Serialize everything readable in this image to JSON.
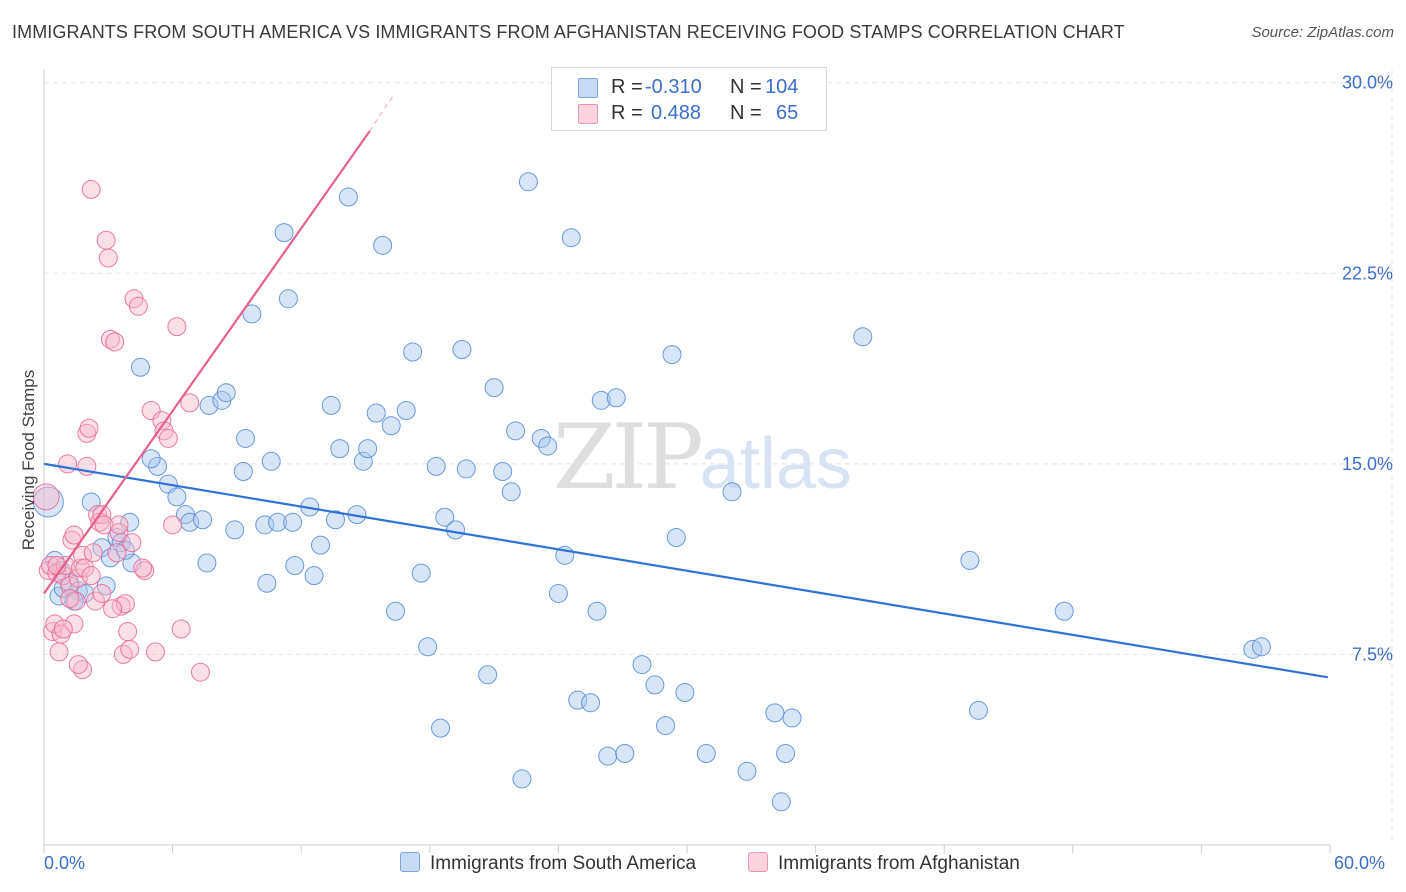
{
  "title": "IMMIGRANTS FROM SOUTH AMERICA VS IMMIGRANTS FROM AFGHANISTAN RECEIVING FOOD STAMPS CORRELATION CHART",
  "source": "Source: ZipAtlas.com",
  "watermark": {
    "zip": "ZIP",
    "atlas": "atlas"
  },
  "legend_top": {
    "r_label": "R =",
    "n_label": "N =",
    "rows": [
      {
        "r": "-0.310",
        "n": "104",
        "color": "#a9c6ec"
      },
      {
        "r": "0.488",
        "n": "65",
        "color": "#f7b8c9"
      }
    ]
  },
  "x_axis": {
    "min_label": "0.0%",
    "max_label": "60.0%"
  },
  "colors": {
    "blue": "#5b8fd9",
    "blue_fill": "#a9c6ec",
    "pink": "#e86e9a",
    "pink_fill": "#f7b8c9",
    "blue_line": "#2f72d4",
    "pink_line": "#e4608f"
  },
  "chart_data": {
    "type": "scatter",
    "title": "IMMIGRANTS FROM SOUTH AMERICA VS IMMIGRANTS FROM AFGHANISTAN RECEIVING FOOD STAMPS CORRELATION CHART",
    "xlabel": "",
    "ylabel": "Receiving Food Stamps",
    "xlim": [
      0,
      60
    ],
    "ylim": [
      0,
      30.5
    ],
    "x_unit": "%",
    "y_unit": "%",
    "yticks": [
      7.5,
      15.0,
      22.5,
      30.0
    ],
    "ytick_labels": [
      "7.5%",
      "15.0%",
      "22.5%",
      "30.0%"
    ],
    "grid": "horizontal dashed",
    "legend_position": "bottom",
    "series": [
      {
        "name": "Immigrants from South America",
        "r": -0.31,
        "n": 104,
        "trend": [
          [
            0,
            15.0
          ],
          [
            59.9,
            6.6
          ]
        ],
        "points": [
          [
            0.2,
            13.5
          ],
          [
            0.5,
            11.2
          ],
          [
            0.7,
            9.8
          ],
          [
            0.9,
            10.1
          ],
          [
            1.2,
            10.3
          ],
          [
            1.6,
            10.0
          ],
          [
            1.9,
            9.9
          ],
          [
            2.2,
            13.5
          ],
          [
            2.7,
            11.7
          ],
          [
            3.1,
            11.3
          ],
          [
            3.4,
            12.1
          ],
          [
            4.1,
            11.1
          ],
          [
            3.6,
            11.9
          ],
          [
            4.5,
            18.8
          ],
          [
            4.0,
            12.7
          ],
          [
            5.3,
            14.9
          ],
          [
            5.8,
            14.2
          ],
          [
            6.2,
            13.7
          ],
          [
            5.0,
            15.2
          ],
          [
            6.6,
            13.0
          ],
          [
            6.8,
            12.7
          ],
          [
            7.4,
            12.8
          ],
          [
            7.6,
            11.1
          ],
          [
            7.7,
            17.3
          ],
          [
            8.3,
            17.5
          ],
          [
            8.5,
            17.8
          ],
          [
            8.9,
            12.4
          ],
          [
            9.3,
            14.7
          ],
          [
            9.4,
            16.0
          ],
          [
            9.7,
            20.9
          ],
          [
            10.3,
            12.6
          ],
          [
            10.4,
            10.3
          ],
          [
            10.6,
            15.1
          ],
          [
            10.9,
            12.7
          ],
          [
            11.2,
            24.1
          ],
          [
            11.4,
            21.5
          ],
          [
            11.6,
            12.7
          ],
          [
            11.7,
            11.0
          ],
          [
            12.4,
            13.3
          ],
          [
            12.6,
            10.6
          ],
          [
            12.9,
            11.8
          ],
          [
            13.4,
            17.3
          ],
          [
            13.6,
            12.8
          ],
          [
            13.8,
            15.6
          ],
          [
            14.2,
            25.5
          ],
          [
            14.6,
            13.0
          ],
          [
            14.9,
            15.1
          ],
          [
            15.1,
            15.6
          ],
          [
            15.5,
            17.0
          ],
          [
            15.8,
            23.6
          ],
          [
            16.2,
            16.5
          ],
          [
            16.4,
            9.2
          ],
          [
            16.9,
            17.1
          ],
          [
            17.2,
            19.4
          ],
          [
            17.6,
            10.7
          ],
          [
            17.9,
            7.8
          ],
          [
            18.3,
            14.9
          ],
          [
            18.5,
            4.6
          ],
          [
            18.7,
            12.9
          ],
          [
            19.2,
            12.4
          ],
          [
            19.5,
            19.5
          ],
          [
            19.7,
            14.8
          ],
          [
            20.7,
            6.7
          ],
          [
            21.0,
            18.0
          ],
          [
            21.4,
            14.7
          ],
          [
            21.8,
            13.9
          ],
          [
            22.0,
            16.3
          ],
          [
            22.3,
            2.6
          ],
          [
            22.6,
            26.1
          ],
          [
            23.2,
            16.0
          ],
          [
            23.5,
            15.7
          ],
          [
            24.0,
            9.9
          ],
          [
            24.3,
            11.4
          ],
          [
            24.6,
            23.9
          ],
          [
            24.9,
            5.7
          ],
          [
            25.5,
            5.6
          ],
          [
            25.8,
            9.2
          ],
          [
            26.0,
            17.5
          ],
          [
            26.3,
            3.5
          ],
          [
            26.7,
            17.6
          ],
          [
            27.1,
            3.6
          ],
          [
            27.9,
            7.1
          ],
          [
            28.5,
            6.3
          ],
          [
            29.0,
            4.7
          ],
          [
            29.3,
            19.3
          ],
          [
            29.5,
            12.1
          ],
          [
            29.9,
            6.0
          ],
          [
            30.9,
            3.6
          ],
          [
            32.1,
            13.9
          ],
          [
            32.8,
            2.9
          ],
          [
            34.1,
            5.2
          ],
          [
            34.4,
            1.7
          ],
          [
            34.6,
            3.6
          ],
          [
            34.9,
            5.0
          ],
          [
            38.2,
            20.0
          ],
          [
            43.2,
            11.2
          ],
          [
            43.6,
            5.3
          ],
          [
            47.6,
            9.2
          ],
          [
            56.4,
            7.7
          ],
          [
            56.8,
            7.8
          ],
          [
            3.8,
            11.6
          ],
          [
            2.9,
            10.2
          ],
          [
            1.4,
            9.6
          ],
          [
            0.8,
            10.8
          ]
        ]
      },
      {
        "name": "Immigrants from Afghanistan",
        "r": 0.488,
        "n": 65,
        "trend": [
          [
            0,
            9.9
          ],
          [
            15.2,
            28.1
          ]
        ],
        "trend_dashed_to": [
          16.3,
          29.5
        ],
        "points": [
          [
            0.1,
            13.7
          ],
          [
            0.2,
            10.8
          ],
          [
            0.3,
            11.0
          ],
          [
            0.4,
            8.4
          ],
          [
            0.5,
            8.7
          ],
          [
            0.6,
            10.7
          ],
          [
            0.7,
            7.6
          ],
          [
            0.8,
            8.3
          ],
          [
            0.9,
            10.6
          ],
          [
            1.0,
            11.0
          ],
          [
            1.1,
            15.0
          ],
          [
            1.2,
            10.2
          ],
          [
            1.3,
            12.0
          ],
          [
            1.4,
            8.7
          ],
          [
            1.5,
            9.6
          ],
          [
            1.6,
            10.5
          ],
          [
            1.7,
            10.9
          ],
          [
            1.8,
            11.4
          ],
          [
            1.9,
            10.9
          ],
          [
            2.0,
            16.2
          ],
          [
            2.1,
            16.4
          ],
          [
            2.2,
            25.8
          ],
          [
            2.3,
            11.5
          ],
          [
            2.5,
            13.0
          ],
          [
            2.6,
            12.7
          ],
          [
            2.7,
            13.0
          ],
          [
            2.8,
            12.6
          ],
          [
            2.9,
            23.8
          ],
          [
            3.0,
            23.1
          ],
          [
            3.1,
            19.9
          ],
          [
            3.3,
            19.8
          ],
          [
            3.4,
            11.5
          ],
          [
            3.5,
            12.3
          ],
          [
            3.6,
            9.4
          ],
          [
            3.7,
            7.5
          ],
          [
            3.8,
            9.5
          ],
          [
            4.0,
            7.7
          ],
          [
            4.2,
            21.5
          ],
          [
            4.4,
            21.2
          ],
          [
            4.7,
            10.8
          ],
          [
            5.0,
            17.1
          ],
          [
            5.5,
            16.7
          ],
          [
            5.6,
            16.3
          ],
          [
            5.8,
            16.0
          ],
          [
            6.2,
            20.4
          ],
          [
            6.4,
            8.5
          ],
          [
            6.8,
            17.4
          ],
          [
            7.3,
            6.8
          ],
          [
            1.8,
            6.9
          ],
          [
            2.4,
            9.6
          ],
          [
            3.2,
            9.3
          ],
          [
            1.6,
            7.1
          ],
          [
            0.9,
            8.5
          ],
          [
            4.6,
            10.9
          ],
          [
            5.2,
            7.6
          ],
          [
            2.0,
            14.9
          ],
          [
            3.5,
            12.6
          ],
          [
            1.2,
            9.7
          ],
          [
            2.7,
            9.9
          ],
          [
            0.6,
            11.0
          ],
          [
            1.4,
            12.2
          ],
          [
            4.1,
            11.9
          ],
          [
            6.0,
            12.6
          ],
          [
            3.9,
            8.4
          ],
          [
            2.2,
            10.6
          ]
        ]
      }
    ]
  },
  "bottom_legend": [
    {
      "label": "Immigrants from South America",
      "color": "#a9c6ec"
    },
    {
      "label": "Immigrants from Afghanistan",
      "color": "#f7b8c9"
    }
  ]
}
